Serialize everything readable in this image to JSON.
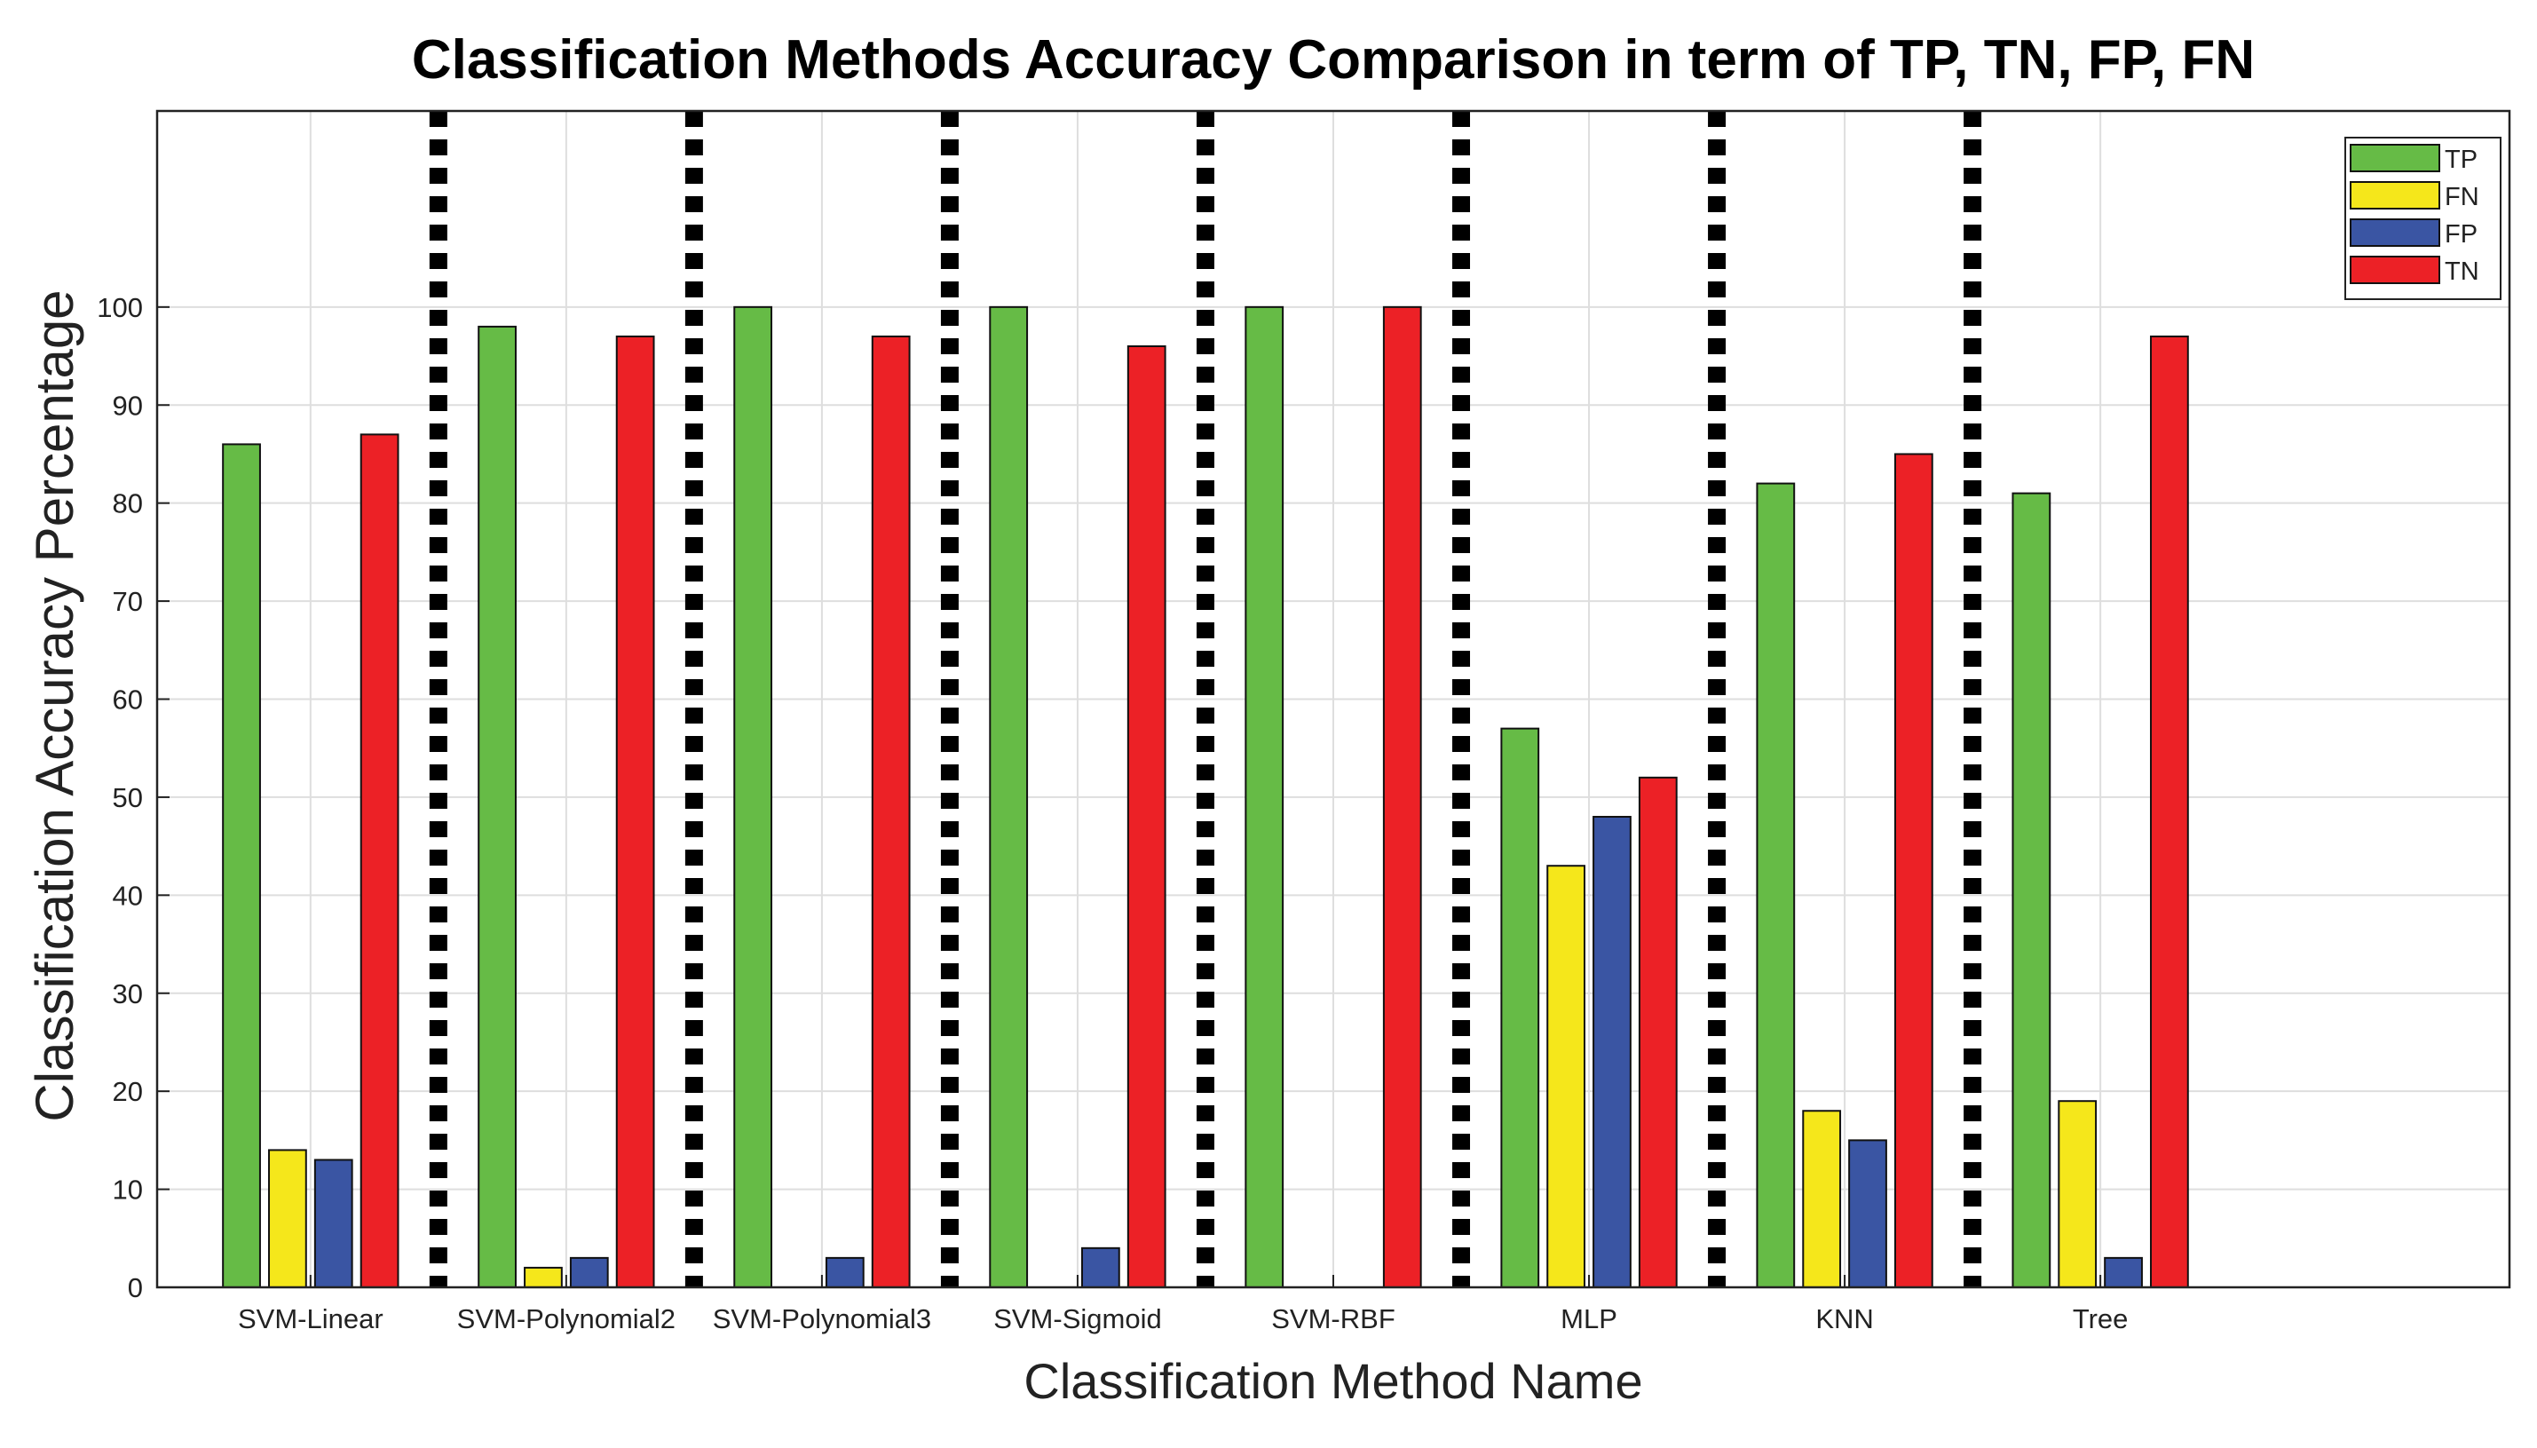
{
  "chart_data": {
    "type": "bar",
    "title": "Classification Methods Accuracy Comparison in term of TP, TN, FP, FN",
    "xlabel": "Classification Method Name",
    "ylabel": "Classification Accuracy Percentage",
    "categories": [
      "SVM-Linear",
      "SVM-Polynomial2",
      "SVM-Polynomial3",
      "SVM-Sigmoid",
      "SVM-RBF",
      "MLP",
      "KNN",
      "Tree"
    ],
    "series": [
      {
        "name": "TP",
        "color": "#66bb46",
        "values": [
          86,
          98,
          100,
          100,
          100,
          57,
          82,
          81
        ]
      },
      {
        "name": "FN",
        "color": "#f5e71b",
        "values": [
          14,
          2,
          0,
          0,
          0,
          43,
          18,
          19
        ]
      },
      {
        "name": "FP",
        "color": "#3a55a3",
        "values": [
          13,
          3,
          3,
          4,
          0,
          48,
          15,
          3
        ]
      },
      {
        "name": "TN",
        "color": "#ec2126",
        "values": [
          87,
          97,
          97,
          96,
          100,
          52,
          85,
          97
        ]
      }
    ],
    "ylim": [
      0,
      120
    ],
    "yticks": [
      0,
      10,
      20,
      30,
      40,
      50,
      60,
      70,
      80,
      90,
      100
    ],
    "xlim": [
      0.4,
      9.6
    ],
    "grid": true,
    "legend_position": "top-right",
    "separators": "dotted vertical lines between methods"
  }
}
